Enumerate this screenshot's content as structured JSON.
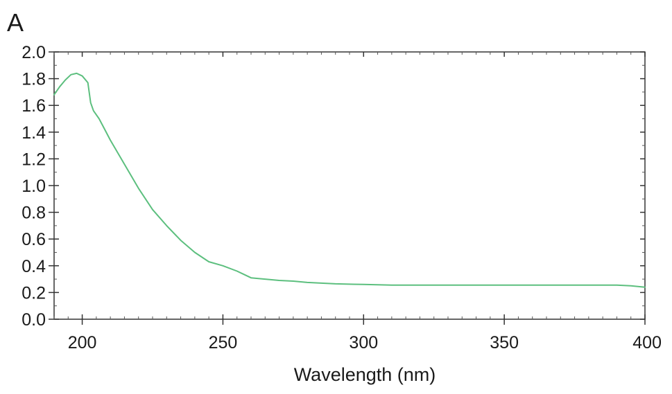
{
  "panel_label": "A",
  "chart_data": {
    "type": "line",
    "title": "",
    "xlabel": "Wavelength (nm)",
    "ylabel": "",
    "xlim": [
      190,
      400
    ],
    "ylim": [
      0.0,
      2.0
    ],
    "x_ticks": [
      200,
      250,
      300,
      350,
      400
    ],
    "x_tick_labels": [
      "200",
      "250",
      "300",
      "350",
      "400"
    ],
    "y_ticks": [
      0.0,
      0.2,
      0.4,
      0.6,
      0.8,
      1.0,
      1.2,
      1.4,
      1.6,
      1.8,
      2.0
    ],
    "y_tick_labels": [
      "0.0",
      "0.2",
      "0.4",
      "0.6",
      "0.8",
      "1.0",
      "1.2",
      "1.4",
      "1.6",
      "1.8",
      "2.0"
    ],
    "grid": false,
    "legend": "none",
    "line_color": "#5cbf7e",
    "series": [
      {
        "x": [
          190,
          192,
          194,
          196,
          198,
          200,
          202,
          203,
          204,
          206,
          208,
          210,
          215,
          220,
          225,
          230,
          235,
          240,
          245,
          250,
          255,
          258,
          260,
          265,
          270,
          275,
          280,
          290,
          300,
          310,
          320,
          330,
          340,
          350,
          360,
          370,
          380,
          390,
          395,
          400
        ],
        "y": [
          1.68,
          1.74,
          1.79,
          1.83,
          1.84,
          1.82,
          1.77,
          1.62,
          1.56,
          1.5,
          1.42,
          1.34,
          1.16,
          0.98,
          0.82,
          0.7,
          0.59,
          0.5,
          0.43,
          0.4,
          0.36,
          0.33,
          0.31,
          0.3,
          0.29,
          0.285,
          0.275,
          0.265,
          0.26,
          0.255,
          0.255,
          0.255,
          0.255,
          0.255,
          0.255,
          0.255,
          0.255,
          0.255,
          0.25,
          0.24
        ]
      }
    ]
  }
}
